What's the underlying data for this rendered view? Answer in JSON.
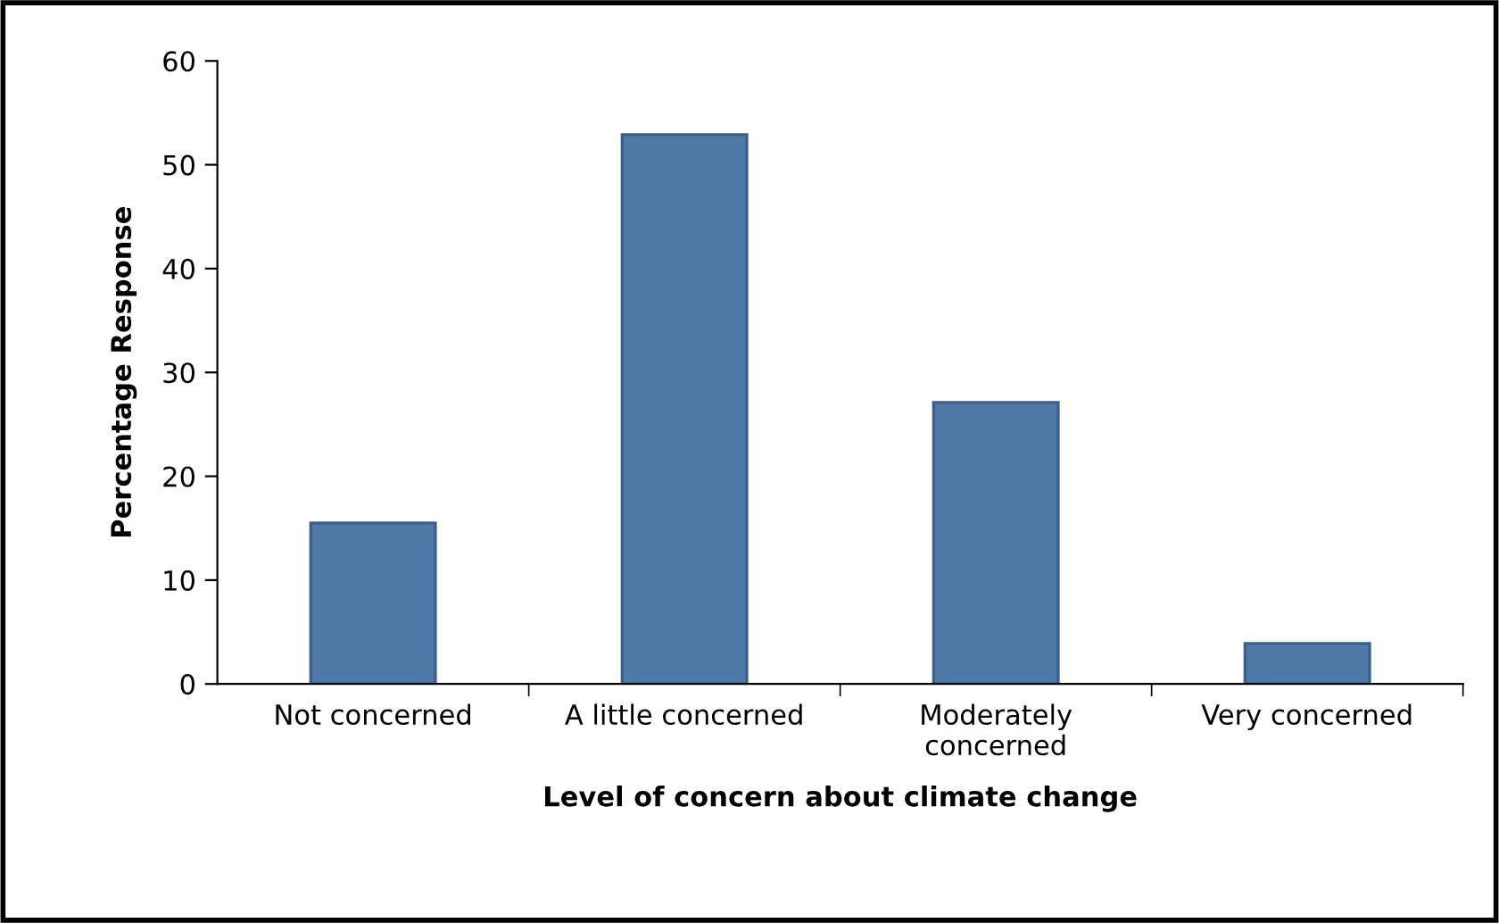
{
  "chart_data": {
    "type": "bar",
    "xlabel": "Level of concern about climate change",
    "ylabel": "Percentage Response",
    "categories": [
      "Not concerned",
      "A little concerned",
      "Moderately\nconcerned",
      "Very concerned"
    ],
    "values": [
      15.5,
      52.9,
      27.1,
      3.9
    ],
    "color": "#4f7aa8",
    "ylim": [
      0,
      60
    ],
    "yticks": [
      0,
      10,
      20,
      30,
      40,
      50,
      60
    ],
    "grid": false,
    "legend": false
  }
}
